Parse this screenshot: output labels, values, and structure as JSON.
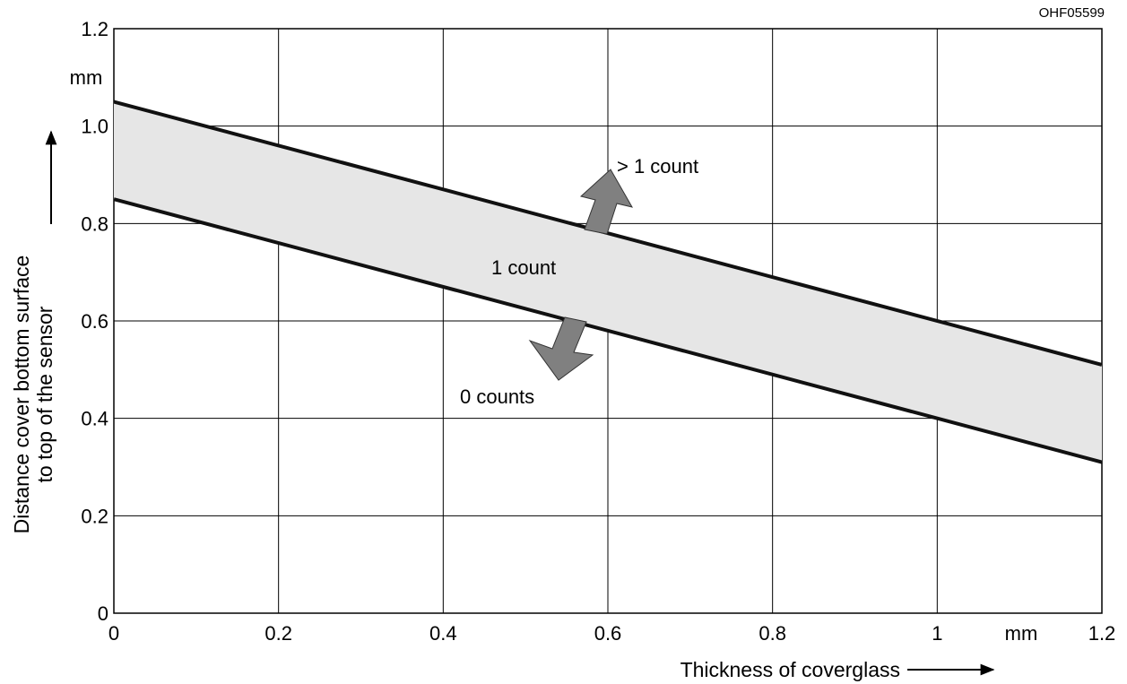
{
  "chart_data": {
    "type": "line",
    "reference_code": "OHF05599",
    "xlabel": "Thickness of coverglass",
    "ylabel": [
      "Distance cover bottom surface",
      "to top of the sensor"
    ],
    "x_unit": "mm",
    "y_unit": "mm",
    "xlim": [
      0,
      1.2
    ],
    "ylim": [
      0,
      1.2
    ],
    "x_ticks": [
      {
        "value": 0,
        "label": "0"
      },
      {
        "value": 0.2,
        "label": "0.2"
      },
      {
        "value": 0.4,
        "label": "0.4"
      },
      {
        "value": 0.6,
        "label": "0.6"
      },
      {
        "value": 0.8,
        "label": "0.8"
      },
      {
        "value": 1.0,
        "label": "1"
      },
      {
        "value": 1.2,
        "label": "1.2"
      }
    ],
    "y_ticks": [
      {
        "value": 0,
        "label": "0"
      },
      {
        "value": 0.2,
        "label": "0.2"
      },
      {
        "value": 0.4,
        "label": "0.4"
      },
      {
        "value": 0.6,
        "label": "0.6"
      },
      {
        "value": 0.8,
        "label": "0.8"
      },
      {
        "value": 1.0,
        "label": "1.0"
      },
      {
        "value": 1.2,
        "label": "1.2"
      }
    ],
    "grid": true,
    "series": [
      {
        "x": [
          0,
          1.2
        ],
        "y": [
          1.05,
          0.51
        ]
      },
      {
        "x": [
          0,
          1.2
        ],
        "y": [
          0.85,
          0.31
        ]
      }
    ],
    "band_fill": "#e6e6e6",
    "annotations": {
      "above": "> 1 count",
      "band": "1 count",
      "below": "0 counts"
    },
    "colors": {
      "line": "#111111",
      "grid": "#000000",
      "arrow": "#808080",
      "band": "#e6e6e6"
    }
  }
}
